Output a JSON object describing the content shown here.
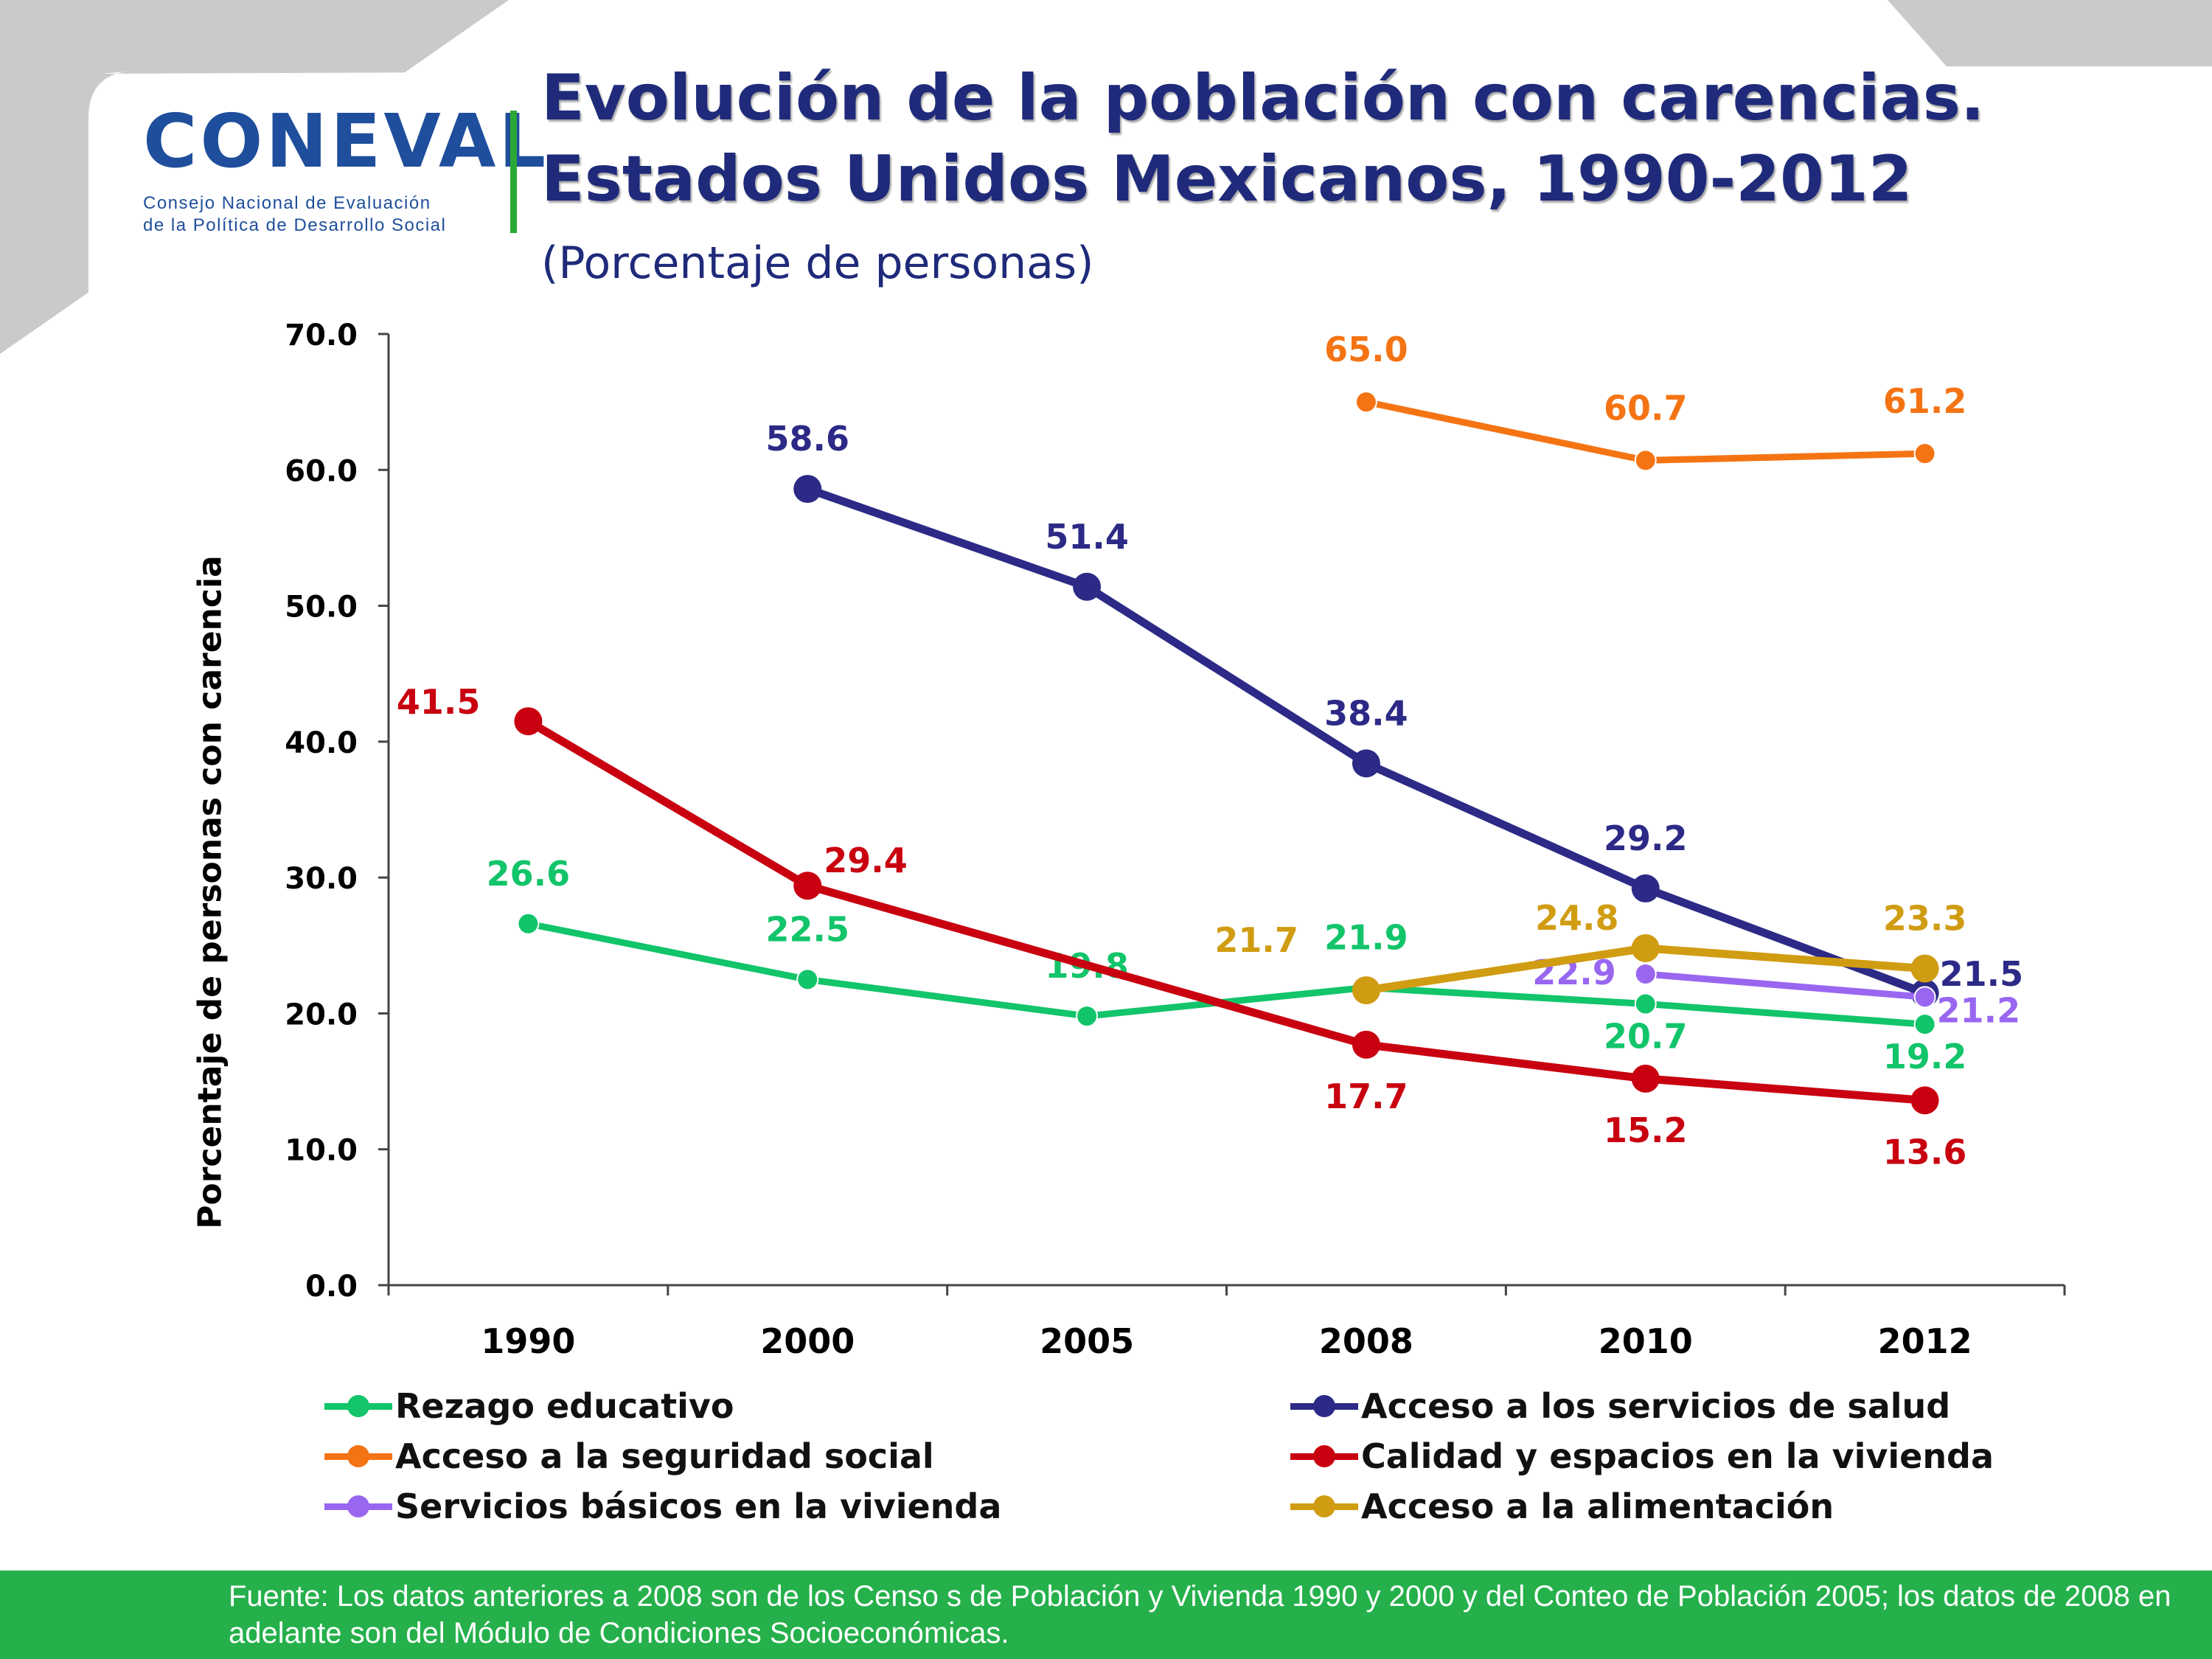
{
  "logo": {
    "wordmark": "CONEVAL",
    "subtitle_line1": "Consejo Nacional de Evaluación",
    "subtitle_line2": "de la Política de Desarrollo Social"
  },
  "header": {
    "title_line1": "Evolución de la población con carencias.",
    "title_line2": "Estados Unidos Mexicanos, 1990-2012",
    "subtitle": "(Porcentaje de personas)"
  },
  "footer": {
    "source": "Fuente: Los datos anteriores a 2008 son de los Censo s de Población y Vivienda  1990 y 2000 y del Conteo de Población 2005; los datos de 2008 en adelante son del  Módulo de  Condiciones Socioeconómicas."
  },
  "chart_data": {
    "type": "line",
    "title": "",
    "xlabel": "",
    "ylabel": "Porcentaje de personas con carencia",
    "categories": [
      "1990",
      "2000",
      "2005",
      "2008",
      "2010",
      "2012"
    ],
    "ylim": [
      0,
      70
    ],
    "yticks": [
      "0.0",
      "10.0",
      "20.0",
      "30.0",
      "40.0",
      "50.0",
      "60.0",
      "70.0"
    ],
    "grid": false,
    "legend_position": "bottom",
    "series": [
      {
        "name": "Rezago educativo",
        "color": "#12c46a",
        "marker": "small",
        "values": [
          26.6,
          22.5,
          19.8,
          21.9,
          20.7,
          19.2
        ],
        "labels": [
          "26.6",
          "22.5",
          "19.8",
          "21.9",
          "20.7",
          "19.2"
        ]
      },
      {
        "name": "Acceso a los servicios de salud",
        "color": "#2c2a86",
        "marker": "large",
        "values": [
          null,
          58.6,
          51.4,
          38.4,
          29.2,
          21.5
        ],
        "labels": [
          null,
          "58.6",
          "51.4",
          "38.4",
          "29.2",
          "21.5"
        ]
      },
      {
        "name": "Acceso a la seguridad social",
        "color": "#f47414",
        "marker": "small",
        "values": [
          null,
          null,
          null,
          65.0,
          60.7,
          61.2
        ],
        "labels": [
          null,
          null,
          null,
          "65.0",
          "60.7",
          "61.2"
        ]
      },
      {
        "name": "Calidad y espacios en la vivienda",
        "color": "#c8000f",
        "marker": "large",
        "values": [
          41.5,
          29.4,
          null,
          17.7,
          15.2,
          13.6
        ],
        "labels": [
          "41.5",
          "29.4",
          null,
          "17.7",
          "15.2",
          "13.6"
        ]
      },
      {
        "name": "Servicios básicos en la vivienda",
        "color": "#9966f0",
        "marker": "small",
        "values": [
          null,
          null,
          null,
          null,
          22.9,
          21.2
        ],
        "labels": [
          null,
          null,
          null,
          null,
          "22.9",
          "21.2"
        ]
      },
      {
        "name": "Acceso a la alimentación",
        "color": "#d09c12",
        "marker": "large",
        "values": [
          null,
          null,
          null,
          21.7,
          24.8,
          23.3
        ],
        "labels": [
          null,
          null,
          null,
          "21.7",
          "24.8",
          "23.3"
        ]
      }
    ]
  }
}
